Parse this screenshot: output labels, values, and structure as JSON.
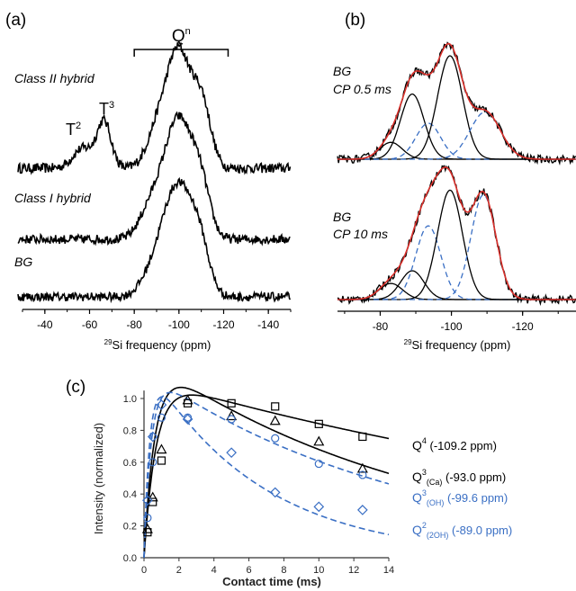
{
  "panels": {
    "a": "(a)",
    "b": "(b)",
    "c": "(c)"
  },
  "chart_data": [
    {
      "panel": "(a)",
      "type": "line",
      "xlabel_prefix": "29",
      "xlabel": "Si frequency (ppm)",
      "xlim": [
        -30,
        -150
      ],
      "x_ticks": [
        "-40",
        "-60",
        "-80",
        "-100",
        "-120",
        "-140"
      ],
      "region_label": "Q",
      "region_label_sup": "n",
      "region_range": [
        -80,
        -122
      ],
      "annotations": [
        {
          "label": "T",
          "sup": "2",
          "x": -58
        },
        {
          "label": "T",
          "sup": "3",
          "x": -66
        }
      ],
      "series": [
        {
          "name": "Class II hybrid",
          "peaks": [
            {
              "center": -57,
              "height": 0.18,
              "width": 4.5
            },
            {
              "center": -66.5,
              "height": 0.42,
              "width": 3.2
            },
            {
              "center": -91,
              "height": 0.38,
              "width": 5.0
            },
            {
              "center": -100,
              "height": 1.0,
              "width": 5.0
            },
            {
              "center": -110,
              "height": 0.6,
              "width": 4.2
            }
          ]
        },
        {
          "name": "Class I hybrid",
          "peaks": [
            {
              "center": -85,
              "height": 0.16,
              "width": 4.5
            },
            {
              "center": -92,
              "height": 0.42,
              "width": 5.0
            },
            {
              "center": -100,
              "height": 1.0,
              "width": 5.0
            },
            {
              "center": -109,
              "height": 0.62,
              "width": 4.5
            }
          ]
        },
        {
          "name": "BG",
          "peaks": [
            {
              "center": -85,
              "height": 0.1,
              "width": 4.5
            },
            {
              "center": -92,
              "height": 0.38,
              "width": 5.0
            },
            {
              "center": -100,
              "height": 1.0,
              "width": 5.5
            },
            {
              "center": -109,
              "height": 0.55,
              "width": 4.5
            }
          ]
        }
      ]
    },
    {
      "panel": "(b)",
      "type": "line",
      "xlabel_prefix": "29",
      "xlabel": "Si frequency (ppm)",
      "xlim": [
        -68,
        -135
      ],
      "x_ticks": [
        "-80",
        "-100",
        "-120"
      ],
      "spectra": [
        {
          "label_line1": "BG",
          "label_line2": "CP 0.5 ms",
          "components": [
            {
              "type": "solid",
              "color": "#000000",
              "center": -83,
              "height": 0.15,
              "width": 3.2
            },
            {
              "type": "solid",
              "color": "#000000",
              "center": -89,
              "height": 0.58,
              "width": 3.3
            },
            {
              "type": "dashed",
              "color": "#3a6fc4",
              "center": -93.5,
              "height": 0.32,
              "width": 3.5
            },
            {
              "type": "solid",
              "color": "#000000",
              "center": -99.6,
              "height": 0.92,
              "width": 3.5
            },
            {
              "type": "dashed",
              "color": "#3a6fc4",
              "center": -109.5,
              "height": 0.42,
              "width": 4.3
            }
          ]
        },
        {
          "label_line1": "BG",
          "label_line2": "CP 10 ms",
          "components": [
            {
              "type": "solid",
              "color": "#000000",
              "center": -83,
              "height": 0.14,
              "width": 3.3
            },
            {
              "type": "solid",
              "color": "#000000",
              "center": -89,
              "height": 0.25,
              "width": 3.3
            },
            {
              "type": "dashed",
              "color": "#3a6fc4",
              "center": -93.5,
              "height": 0.64,
              "width": 3.5
            },
            {
              "type": "solid",
              "color": "#000000",
              "center": -99.6,
              "height": 0.95,
              "width": 3.5
            },
            {
              "type": "dashed",
              "color": "#3a6fc4",
              "center": -109,
              "height": 0.91,
              "width": 3.5
            }
          ]
        }
      ],
      "fit_color": "#d9302b"
    },
    {
      "panel": "(c)",
      "type": "scatter",
      "xlabel": "Contact time (ms)",
      "ylabel": "Intensity (normalized)",
      "xlim": [
        0,
        14
      ],
      "ylim": [
        0,
        1.05
      ],
      "x_ticks": [
        "0",
        "2",
        "4",
        "6",
        "8",
        "10",
        "12",
        "14"
      ],
      "y_ticks": [
        "0.0",
        "0.2",
        "0.4",
        "0.6",
        "0.8",
        "1.0"
      ],
      "series": [
        {
          "name": "Q",
          "sup": "4",
          "sub": "",
          "shift": "(-109.2 ppm)",
          "marker": "square",
          "color": "#000000",
          "dash": false,
          "x": [
            0.2,
            0.5,
            1.0,
            2.5,
            5.0,
            7.5,
            10.0,
            12.5
          ],
          "y": [
            0.16,
            0.35,
            0.61,
            0.97,
            0.97,
            0.95,
            0.84,
            0.76
          ],
          "fit": {
            "a": 1.13,
            "t1": 0.7,
            "t2": 34
          }
        },
        {
          "name": "Q",
          "sup": "3",
          "sub": "(Ca)",
          "shift": "(-93.0 ppm)",
          "marker": "triangle",
          "color": "#000000",
          "dash": false,
          "x": [
            0.2,
            0.5,
            1.0,
            2.5,
            5.0,
            7.5,
            10.0,
            12.5
          ],
          "y": [
            0.18,
            0.38,
            0.68,
            0.99,
            0.89,
            0.86,
            0.73,
            0.56
          ],
          "fit": {
            "a": 1.27,
            "t1": 0.65,
            "t2": 16
          }
        },
        {
          "name": "Q",
          "sup": "3",
          "sub": "(OH)",
          "shift": "(-99.6 ppm)",
          "marker": "circle",
          "color": "#3a6fc4",
          "dash": true,
          "x": [
            0.2,
            0.5,
            1.0,
            2.5,
            5.0,
            7.5,
            10.0,
            12.5
          ],
          "y": [
            0.25,
            0.6,
            0.88,
            0.88,
            0.87,
            0.75,
            0.59,
            0.52
          ],
          "fit": {
            "a": 1.18,
            "t1": 0.42,
            "t2": 15
          }
        },
        {
          "name": "Q",
          "sup": "2",
          "sub": "(2OH)",
          "shift": "(-89.0 ppm)",
          "marker": "diamond",
          "color": "#3a6fc4",
          "dash": true,
          "x": [
            0.2,
            0.5,
            1.0,
            2.5,
            5.0,
            7.5,
            10.0,
            12.5
          ],
          "y": [
            0.36,
            0.76,
            0.96,
            0.87,
            0.66,
            0.41,
            0.32,
            0.3
          ],
          "fit": {
            "a": 1.25,
            "t1": 0.35,
            "t2": 6.5
          }
        }
      ]
    }
  ]
}
